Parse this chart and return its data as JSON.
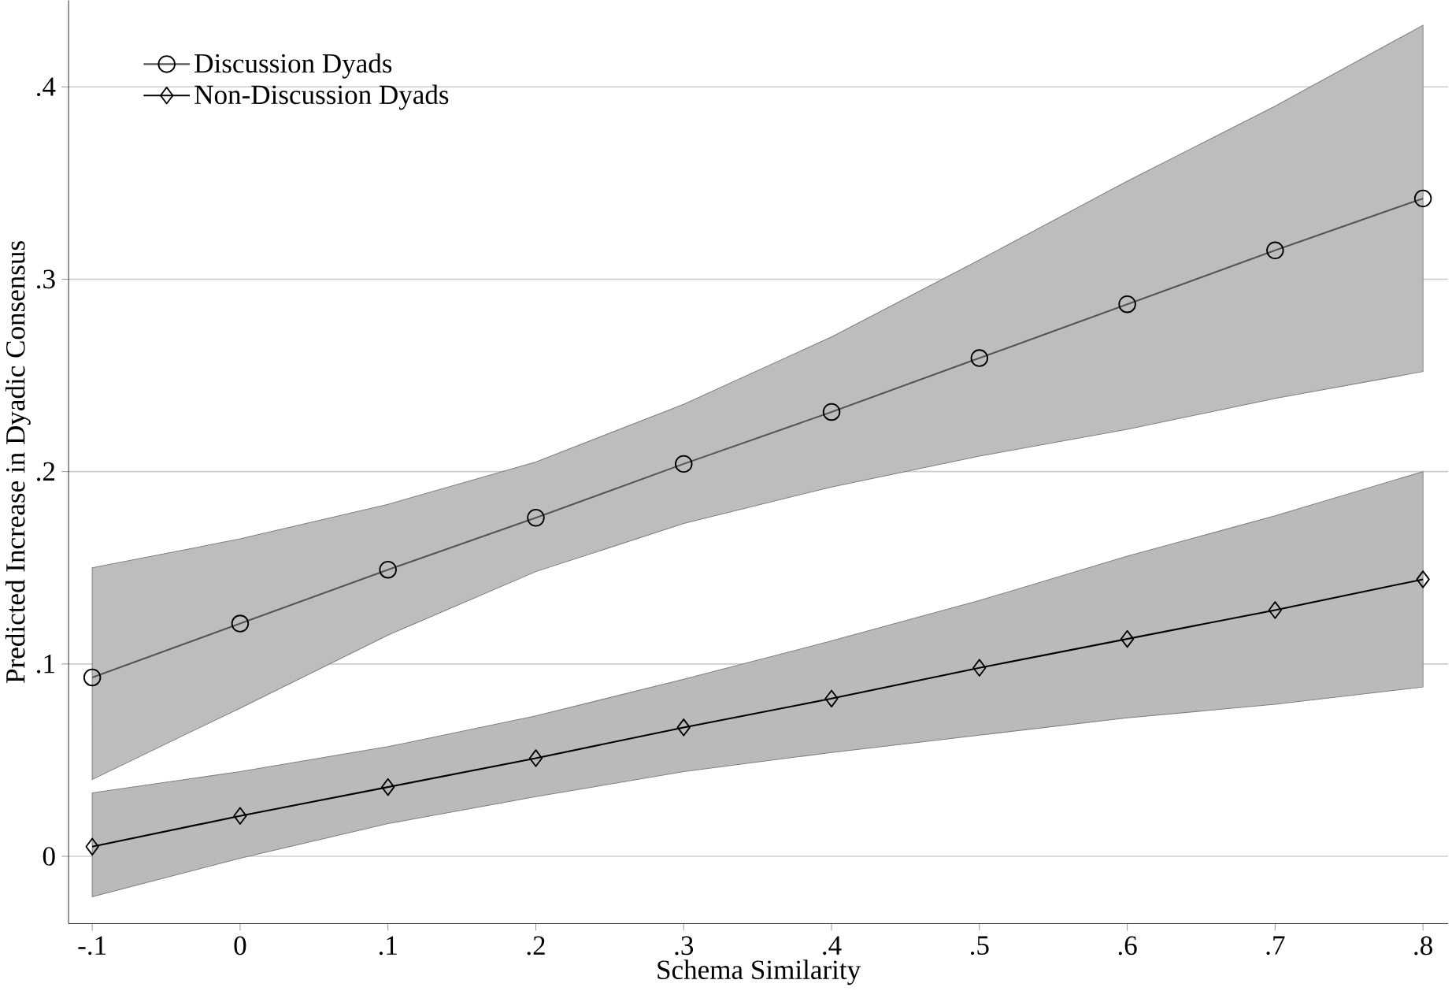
{
  "chart_data": {
    "type": "line",
    "xlabel": "Schema Similarity",
    "ylabel": "Predicted Increase in Dyadic Consensus",
    "x": [
      -0.1,
      0,
      0.1,
      0.2,
      0.3,
      0.4,
      0.5,
      0.6,
      0.7,
      0.8
    ],
    "series": [
      {
        "name": "Discussion Dyads",
        "color": "#555555",
        "marker": "circle",
        "values": [
          0.093,
          0.121,
          0.149,
          0.176,
          0.204,
          0.231,
          0.259,
          0.287,
          0.315,
          0.342
        ],
        "lower": [
          0.04,
          0.077,
          0.115,
          0.148,
          0.173,
          0.192,
          0.208,
          0.222,
          0.238,
          0.252
        ],
        "upper": [
          0.15,
          0.165,
          0.183,
          0.205,
          0.235,
          0.27,
          0.31,
          0.351,
          0.39,
          0.432
        ]
      },
      {
        "name": "Non-Discussion Dyads",
        "color": "#000000",
        "marker": "diamond",
        "values": [
          0.005,
          0.021,
          0.036,
          0.051,
          0.067,
          0.082,
          0.098,
          0.113,
          0.128,
          0.144
        ],
        "lower": [
          -0.021,
          -0.001,
          0.017,
          0.031,
          0.044,
          0.054,
          0.063,
          0.072,
          0.079,
          0.088
        ],
        "upper": [
          0.033,
          0.044,
          0.057,
          0.073,
          0.092,
          0.112,
          0.133,
          0.156,
          0.177,
          0.2
        ]
      }
    ],
    "xlim": [
      -0.116,
      0.817
    ],
    "ylim": [
      -0.035,
      0.445
    ],
    "xticks": [
      {
        "value": -0.1,
        "label": "-.1"
      },
      0,
      {
        "value": 0.1,
        "label": ".1"
      },
      {
        "value": 0.2,
        "label": ".2"
      },
      {
        "value": 0.3,
        "label": ".3"
      },
      {
        "value": 0.4,
        "label": ".4"
      },
      {
        "value": 0.5,
        "label": ".5"
      },
      {
        "value": 0.6,
        "label": ".6"
      },
      {
        "value": 0.7,
        "label": ".7"
      },
      {
        "value": 0.8,
        "label": ".8"
      }
    ],
    "yticks": [
      0,
      {
        "value": 0.1,
        "label": ".1"
      },
      {
        "value": 0.2,
        "label": ".2"
      },
      {
        "value": 0.3,
        "label": ".3"
      },
      {
        "value": 0.4,
        "label": ".4"
      }
    ],
    "grid": "y",
    "legend": "top left",
    "line_style": "solid"
  }
}
